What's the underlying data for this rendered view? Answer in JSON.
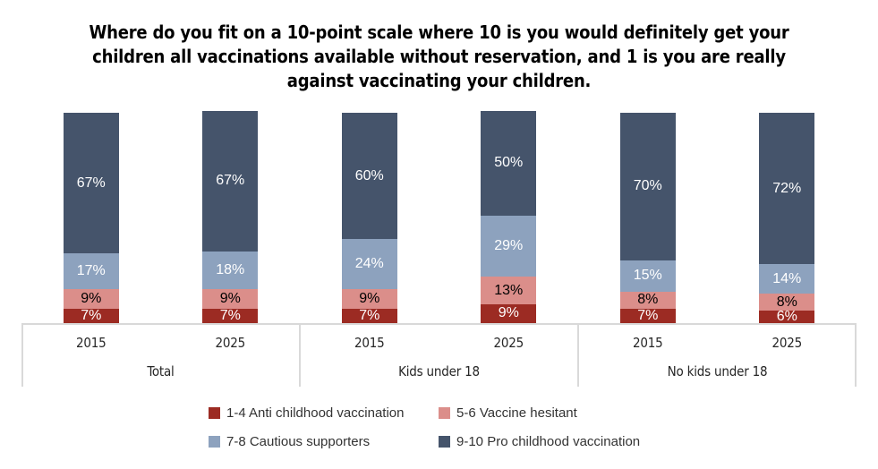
{
  "title": {
    "full": "Where do you fit on a 10-point scale where 10 is you would definitely get your children all vaccinations available without reservation, and 1 is you are really against vaccinating your children.",
    "lines": [
      "Where do you fit on a 10-point scale where 10 is you would definitely get your",
      "children all vaccinations available without reservation, and 1 is you are really",
      "against vaccinating your children."
    ]
  },
  "chart_data": {
    "type": "bar",
    "stacked": true,
    "title": "Where do you fit on a 10-point scale where 10 is you would definitely get your children all vaccinations available without reservation, and 1 is you are really against vaccinating your children.",
    "value_suffix": "%",
    "ylim": [
      0,
      100
    ],
    "gridlines": false,
    "y_axis_visible": false,
    "legend_position": "bottom",
    "group_labels": [
      "Total",
      "Kids under 18",
      "No kids under 18"
    ],
    "x_labels": [
      "2015",
      "2025",
      "2015",
      "2025",
      "2015",
      "2025"
    ],
    "series": [
      {
        "name": "1-4 Anti childhood vaccination",
        "color": "#9C2B23",
        "label_color": "#FFFFFF",
        "values": [
          7,
          7,
          7,
          9,
          7,
          6
        ]
      },
      {
        "name": "5-6 Vaccine hesitant",
        "color": "#DB8E8A",
        "label_color": "#000000",
        "values": [
          9,
          9,
          9,
          13,
          8,
          8
        ]
      },
      {
        "name": "7-8 Cautious supporters",
        "color": "#8DA2BE",
        "label_color": "#FFFFFF",
        "values": [
          17,
          18,
          24,
          29,
          15,
          14
        ]
      },
      {
        "name": "9-10 Pro childhood vaccination",
        "color": "#45546B",
        "label_color": "#FFFFFF",
        "values": [
          67,
          67,
          60,
          50,
          70,
          72
        ]
      }
    ]
  },
  "axis_table": {
    "line_color": "#D9D9D9"
  }
}
